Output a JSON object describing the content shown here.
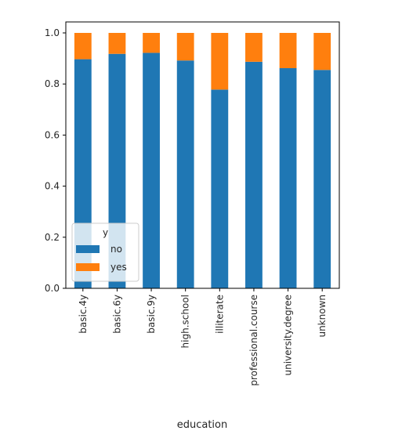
{
  "chart_data": {
    "type": "bar",
    "stacked": true,
    "categories": [
      "basic.4y",
      "basic.6y",
      "basic.9y",
      "high.school",
      "illiterate",
      "professional.course",
      "university.degree",
      "unknown"
    ],
    "series": [
      {
        "name": "no",
        "values": [
          0.897,
          0.918,
          0.922,
          0.892,
          0.778,
          0.887,
          0.862,
          0.855
        ],
        "color": "#1f77b4"
      },
      {
        "name": "yes",
        "values": [
          0.103,
          0.082,
          0.078,
          0.108,
          0.222,
          0.113,
          0.138,
          0.145
        ],
        "color": "#ff7f0e"
      }
    ],
    "title": "",
    "xlabel": "education",
    "ylabel": "",
    "ylim": [
      0,
      1.0
    ],
    "yticks": [
      "0.0",
      "0.2",
      "0.4",
      "0.6",
      "0.8",
      "1.0"
    ],
    "grid": false,
    "legend": {
      "title": "y",
      "placement": "lower-left",
      "entries": [
        "no",
        "yes"
      ]
    }
  }
}
